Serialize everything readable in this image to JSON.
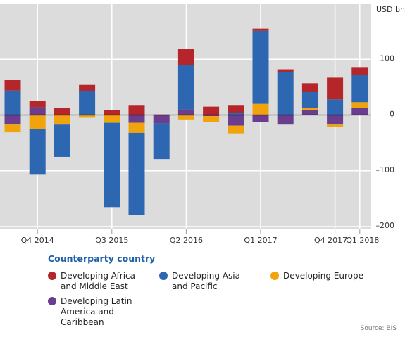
{
  "chart_data": {
    "type": "bar",
    "stacked": true,
    "y_label": "USD bn",
    "categories": [
      null,
      "Q4 2014",
      null,
      null,
      "Q3 2015",
      null,
      null,
      "Q2 2016",
      null,
      null,
      "Q1 2017",
      null,
      null,
      "Q4 2017",
      "Q1 2018"
    ],
    "series": [
      {
        "name": "Developing Latin America and Caribbean",
        "color": "#6a3d8f",
        "values": [
          -16,
          14,
          0,
          0,
          0,
          -14,
          -15,
          10,
          -2,
          -19,
          -12,
          -16,
          9,
          -16,
          13
        ]
      },
      {
        "name": "Developing Europe",
        "color": "#f0a30a",
        "values": [
          -15,
          -25,
          -16,
          -5,
          -14,
          -18,
          0,
          -8,
          -10,
          -14,
          20,
          0,
          4,
          -6,
          10
        ]
      },
      {
        "name": "Developing Asia and Pacific",
        "color": "#2e67b1",
        "values": [
          44,
          -82,
          -59,
          43,
          -151,
          -147,
          -64,
          79,
          0,
          4,
          131,
          77,
          28,
          28,
          49
        ]
      },
      {
        "name": "Developing Africa and Middle East",
        "color": "#b5262b",
        "values": [
          19,
          11,
          12,
          11,
          9,
          18,
          1,
          30,
          15,
          14,
          4,
          5,
          16,
          39,
          14
        ]
      }
    ],
    "legend_order": [
      3,
      2,
      1,
      0
    ],
    "legend_title": "Counterparty country",
    "source": "Source: BIS",
    "ylim": [
      -205,
      200
    ],
    "yticks": [
      {
        "value": -200,
        "label": "–200"
      },
      {
        "value": -100,
        "label": "–100"
      },
      0,
      100
    ],
    "grid": true
  }
}
